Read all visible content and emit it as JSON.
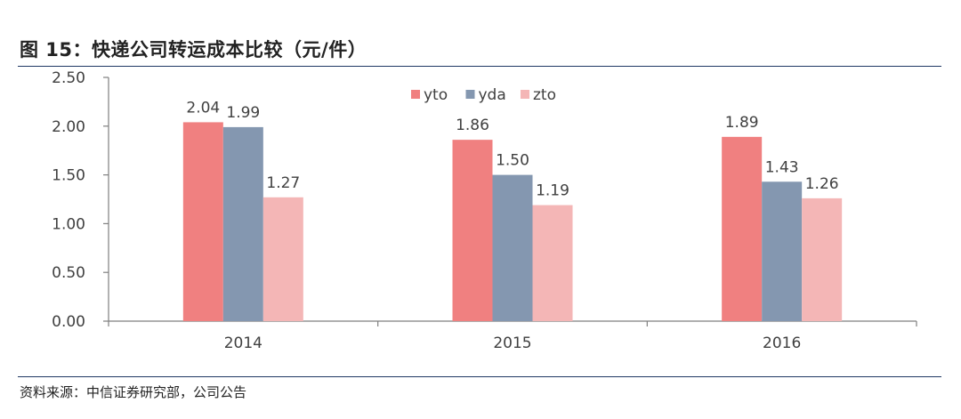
{
  "title": "图 15：快递公司转运成本比较（元/件）",
  "source": "资料来源：中信证券研究部，公司公告",
  "chart_data": {
    "type": "bar",
    "categories": [
      "2014",
      "2015",
      "2016"
    ],
    "series": [
      {
        "name": "yto",
        "color": "#f08080",
        "values": [
          2.04,
          1.86,
          1.89
        ]
      },
      {
        "name": "yda",
        "color": "#8497b0",
        "values": [
          1.99,
          1.5,
          1.43
        ]
      },
      {
        "name": "zto",
        "color": "#f4b6b6",
        "values": [
          1.27,
          1.19,
          1.26
        ]
      }
    ],
    "data_labels": [
      [
        "2.04",
        "1.86",
        "1.89"
      ],
      [
        "1.99",
        "1.50",
        "1.43"
      ],
      [
        "1.27",
        "1.19",
        "1.26"
      ]
    ],
    "yticks": [
      "0.00",
      "0.50",
      "1.00",
      "1.50",
      "2.00",
      "2.50"
    ],
    "ylim": [
      0,
      2.5
    ],
    "legend": "top-center",
    "grid": false
  }
}
